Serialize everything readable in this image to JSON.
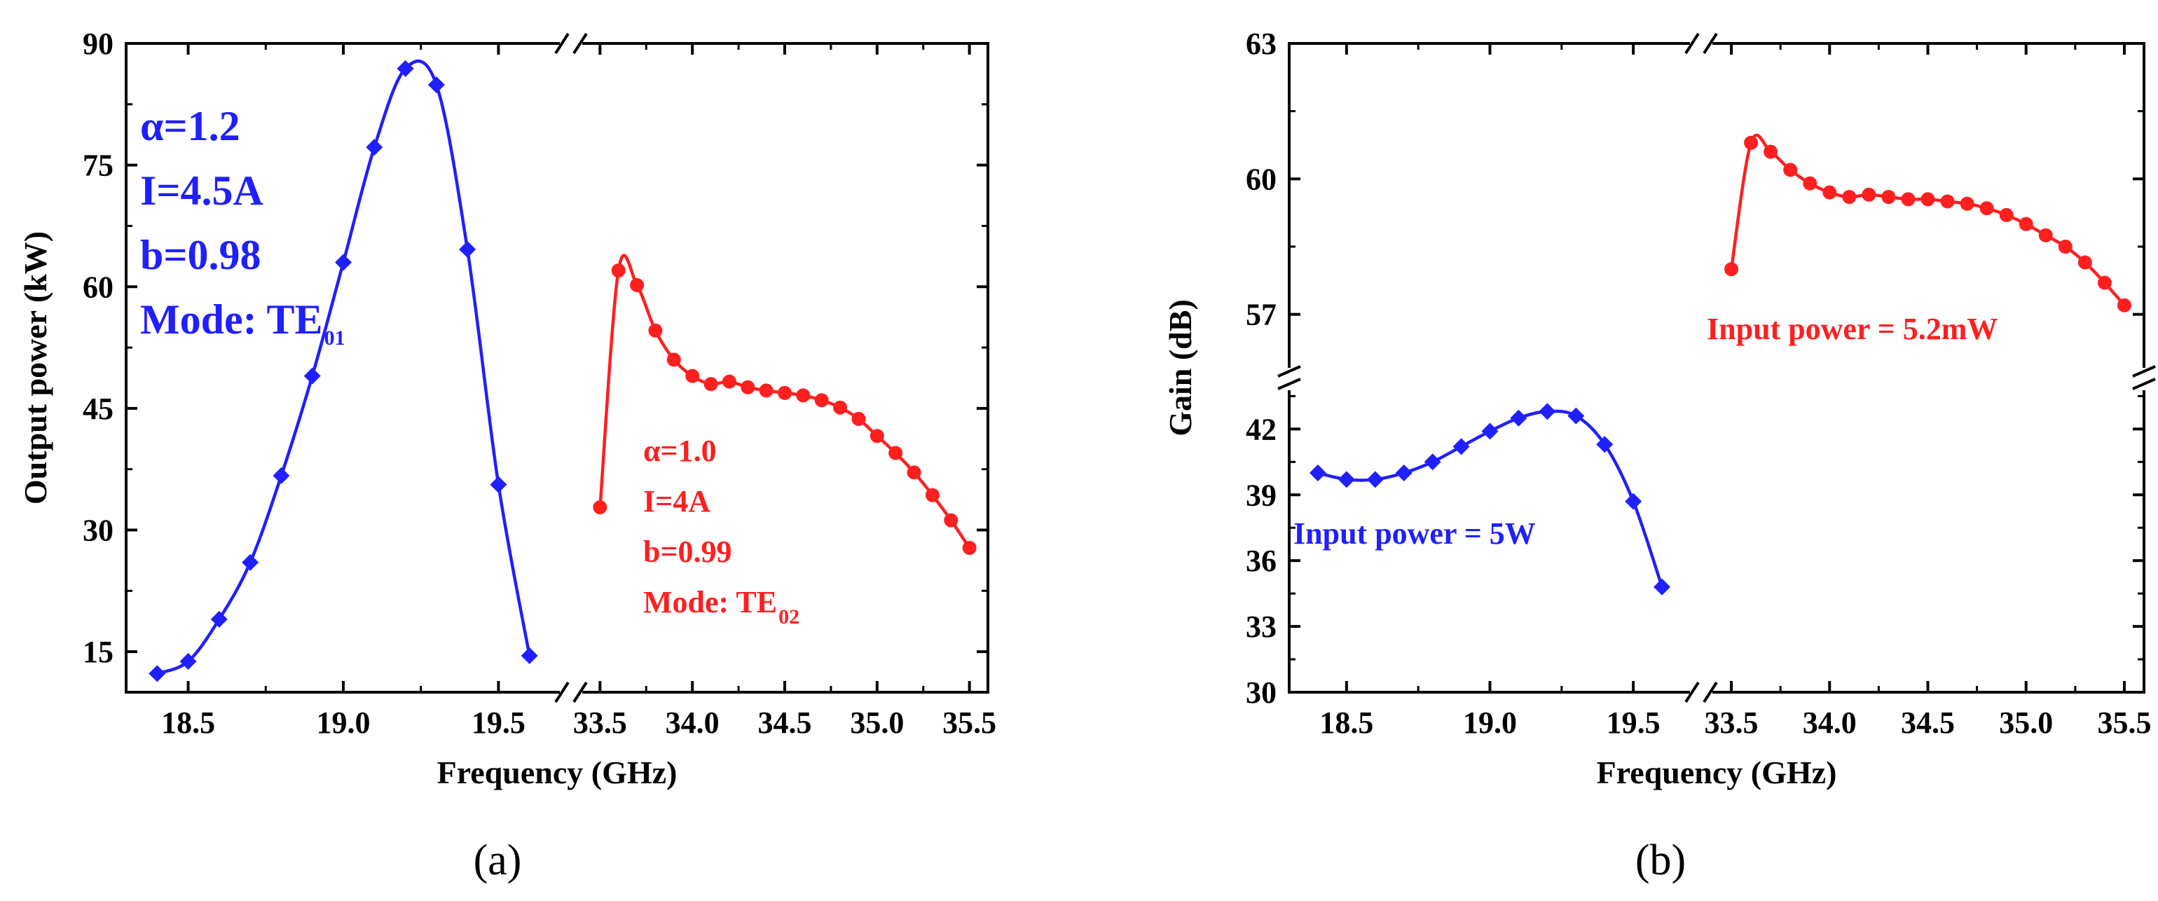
{
  "colors": {
    "blue": "#1f1fff",
    "red": "#ff1f1f",
    "axis": "#000000"
  },
  "chart_data": [
    {
      "type": "line",
      "panel_label": "(a)",
      "xlabel": "Frequency (GHz)",
      "ylabel": "Output power (kW)",
      "ylim": [
        10,
        90
      ],
      "yticks": [
        15,
        30,
        45,
        60,
        75,
        90
      ],
      "x_break": true,
      "x_segments": [
        {
          "range": [
            18.3,
            19.7
          ],
          "ticks": [
            18.5,
            19.0,
            19.5
          ],
          "tick_labels": [
            "18.5",
            "19.0",
            "19.5"
          ]
        },
        {
          "range": [
            33.4,
            35.6
          ],
          "ticks": [
            33.5,
            34.0,
            34.5,
            35.0,
            35.5
          ],
          "tick_labels": [
            "33.5",
            "34.0",
            "34.5",
            "35.0",
            "35.5"
          ]
        }
      ],
      "series": [
        {
          "name": "TE01",
          "color": "blue",
          "marker": "diamond",
          "segment": 0,
          "x": [
            18.4,
            18.5,
            18.6,
            18.7,
            18.8,
            18.9,
            19.0,
            19.1,
            19.2,
            19.3,
            19.4,
            19.5,
            19.6
          ],
          "y": [
            12.3,
            13.8,
            19.0,
            26.0,
            36.7,
            49.0,
            63.0,
            77.2,
            86.9,
            84.9,
            64.6,
            35.6,
            14.5
          ]
        },
        {
          "name": "TE02",
          "color": "red",
          "marker": "circle",
          "segment": 1,
          "x": [
            33.5,
            33.6,
            33.7,
            33.8,
            33.9,
            34.0,
            34.1,
            34.2,
            34.3,
            34.4,
            34.5,
            34.6,
            34.7,
            34.8,
            34.9,
            35.0,
            35.1,
            35.2,
            35.3,
            35.4,
            35.5
          ],
          "y": [
            32.8,
            62.0,
            60.2,
            54.6,
            51.0,
            49.0,
            48.0,
            48.3,
            47.6,
            47.2,
            46.9,
            46.6,
            46.0,
            45.1,
            43.7,
            41.6,
            39.5,
            37.1,
            34.3,
            31.2,
            27.8
          ]
        }
      ],
      "annotations": [
        {
          "color": "blue",
          "lines": [
            "α=1.2",
            "I=4.5A",
            "b=0.98",
            "Mode: TE",
            "01"
          ]
        },
        {
          "color": "red",
          "lines": [
            "α=1.0",
            "I=4A",
            "b=0.99",
            "Mode: TE",
            "02"
          ]
        }
      ]
    },
    {
      "type": "line",
      "panel_label": "(b)",
      "xlabel": "Frequency (GHz)",
      "ylabel": "Gain (dB)",
      "x_break": true,
      "y_break": true,
      "x_segments": [
        {
          "range": [
            18.3,
            19.7
          ],
          "ticks": [
            18.5,
            19.0,
            19.5
          ],
          "tick_labels": [
            "18.5",
            "19.0",
            "19.5"
          ]
        },
        {
          "range": [
            33.4,
            35.6
          ],
          "ticks": [
            33.5,
            34.0,
            34.5,
            35.0,
            35.5
          ],
          "tick_labels": [
            "33.5",
            "34.0",
            "34.5",
            "35.0",
            "35.5"
          ]
        }
      ],
      "y_segments": [
        {
          "range": [
            30,
            43.8
          ],
          "ticks": [
            30,
            33,
            36,
            39,
            42
          ],
          "tick_labels": [
            "30",
            "33",
            "36",
            "39",
            "42"
          ]
        },
        {
          "range": [
            55.8,
            63
          ],
          "ticks": [
            57,
            60,
            63
          ],
          "tick_labels": [
            "57",
            "60",
            "63"
          ]
        }
      ],
      "series": [
        {
          "name": "Input power = 5W",
          "color": "blue",
          "marker": "diamond",
          "segment": 0,
          "y_segment": 0,
          "x": [
            18.4,
            18.5,
            18.6,
            18.7,
            18.8,
            18.9,
            19.0,
            19.1,
            19.2,
            19.3,
            19.4,
            19.5,
            19.6
          ],
          "y": [
            40.0,
            39.7,
            39.7,
            40.0,
            40.5,
            41.2,
            41.9,
            42.5,
            42.8,
            42.6,
            41.3,
            38.7,
            34.8
          ]
        },
        {
          "name": "Input power = 5.2mW",
          "color": "red",
          "marker": "circle",
          "segment": 1,
          "y_segment": 1,
          "x": [
            33.5,
            33.6,
            33.7,
            33.8,
            33.9,
            34.0,
            34.1,
            34.2,
            34.3,
            34.4,
            34.5,
            34.6,
            34.7,
            34.8,
            34.9,
            35.0,
            35.1,
            35.2,
            35.3,
            35.4,
            35.5
          ],
          "y": [
            58.0,
            60.8,
            60.6,
            60.2,
            59.9,
            59.7,
            59.6,
            59.65,
            59.6,
            59.55,
            59.55,
            59.5,
            59.45,
            59.35,
            59.2,
            59.0,
            58.75,
            58.5,
            58.15,
            57.7,
            57.2
          ]
        }
      ],
      "annotations": [
        {
          "color": "blue",
          "lines": [
            "Input power = 5W"
          ]
        },
        {
          "color": "red",
          "lines": [
            "Input power = 5.2mW"
          ]
        }
      ]
    }
  ]
}
